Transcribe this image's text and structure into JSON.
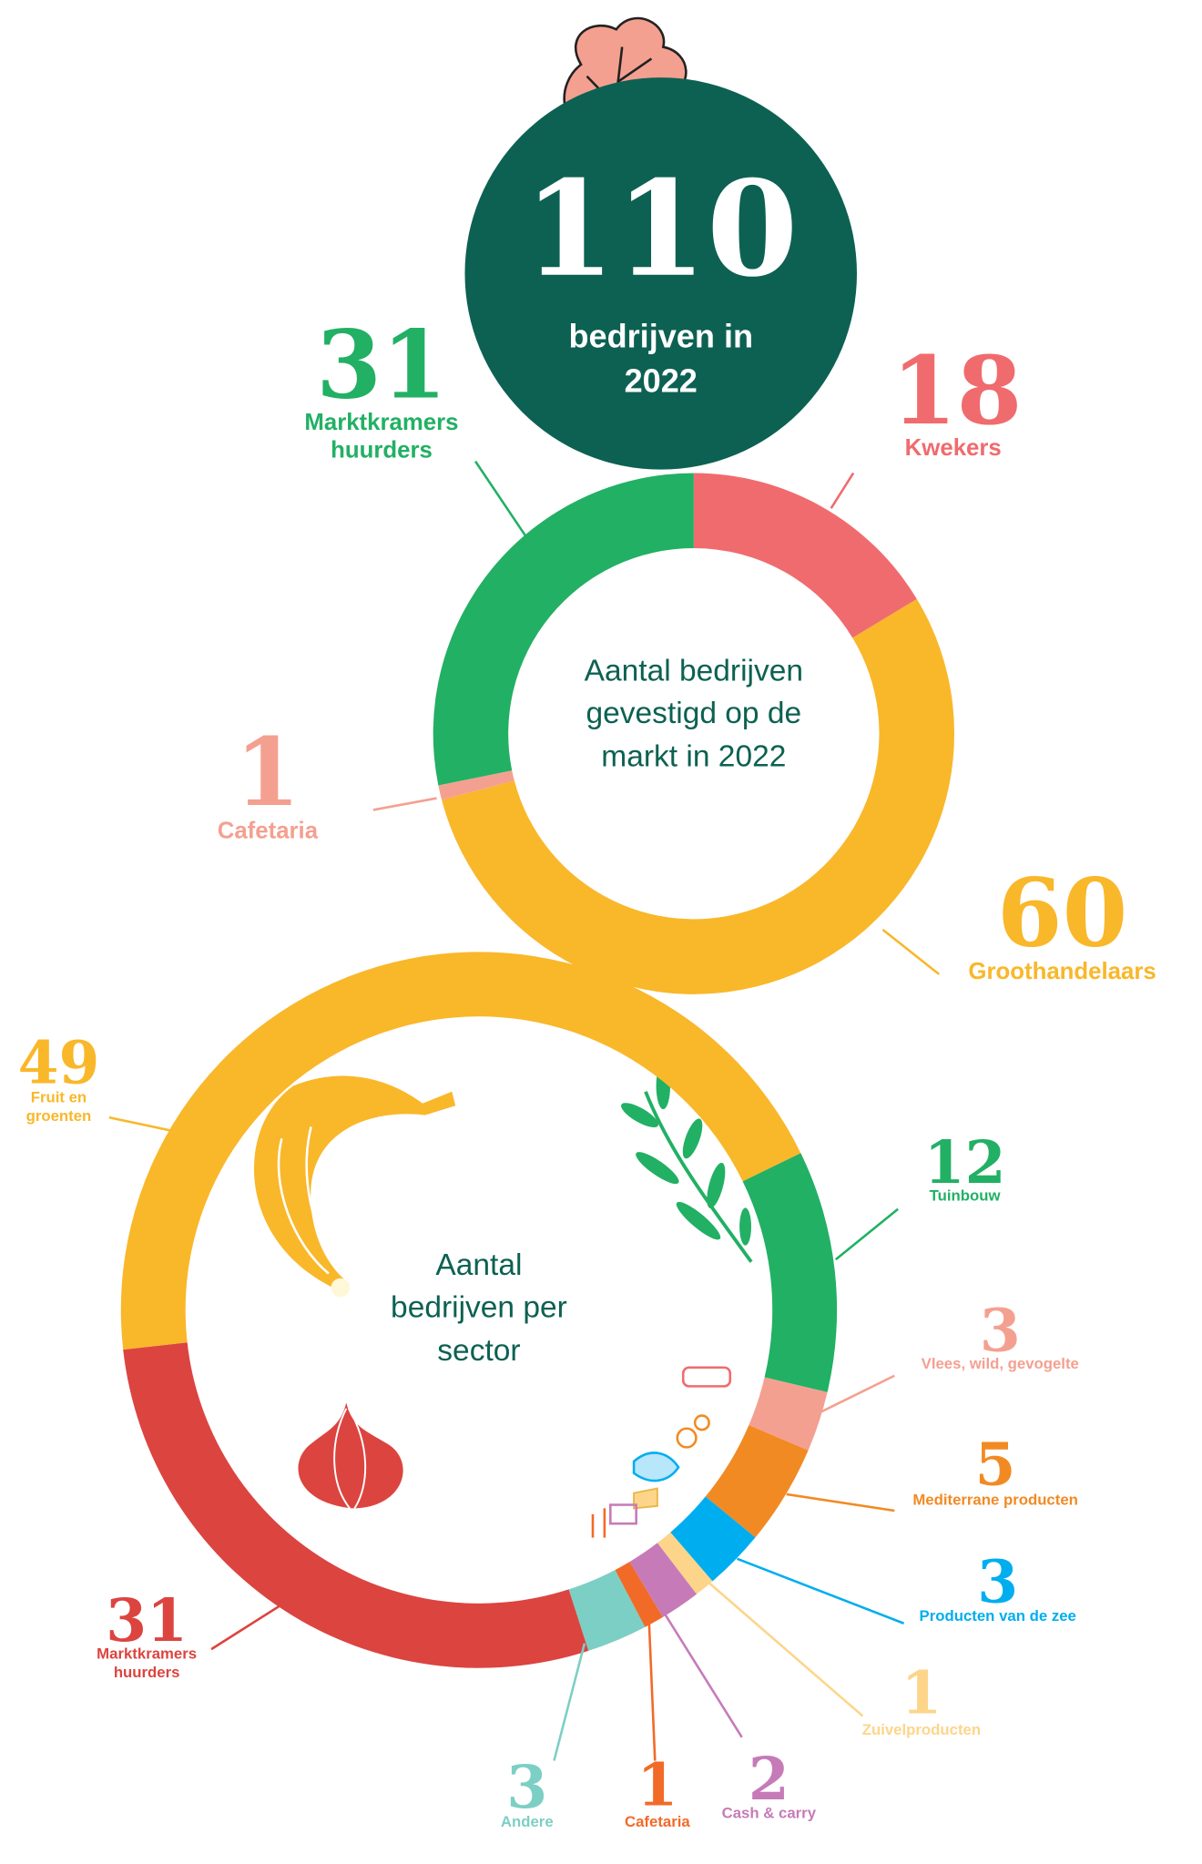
{
  "header": {
    "total": 110,
    "caption": "bedrijven in 2022"
  },
  "chart_data": [
    {
      "type": "donut",
      "title": "Aantal bedrijven gevestigd op de markt in 2022",
      "categories": [
        "Kwekers",
        "Groothandelaars",
        "Cafetaria",
        "Marktkramers huurders"
      ],
      "values": [
        18,
        60,
        1,
        31
      ],
      "colors": [
        "#f06b6e",
        "#f9b72a",
        "#f4a090",
        "#22b064"
      ]
    },
    {
      "type": "donut",
      "title": "Aantal bedrijven per sector",
      "categories": [
        "Tuinbouw",
        "Vlees, wild, gevogelte",
        "Mediterrane producten",
        "Producten van de zee",
        "Zuivelproducten",
        "Cash & carry",
        "Cafetaria",
        "Andere",
        "Marktkramers huurders",
        "Fruit en groenten"
      ],
      "values": [
        12,
        3,
        5,
        3,
        1,
        2,
        1,
        3,
        31,
        49
      ],
      "colors": [
        "#22b064",
        "#f4a090",
        "#f28a23",
        "#00aeef",
        "#fdd58a",
        "#c67bb8",
        "#f26a28",
        "#7ccfc4",
        "#dc4440",
        "#f9b72a"
      ]
    }
  ]
}
